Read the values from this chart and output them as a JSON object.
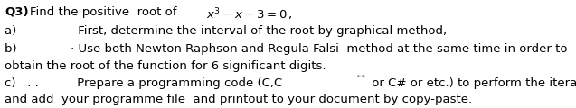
{
  "bg_color": "#ffffff",
  "figsize": [
    6.37,
    1.2
  ],
  "dpi": 100,
  "q3_bold": "Q3)",
  "q3_rest": " Find the positive  root of ",
  "math_formula": "$x^3 - x - 3 = 0\\,,$",
  "line_a": "a)                First, determine the interval of the root by graphical method,",
  "line_b_prefix": "b)              · Use both Newton Raphson and Regula Falsi  method at the same time in order to",
  "line_obtain": "obtain the root of the function for 6 significant digits.",
  "line_c_prefix": "c)   . .          Prepare a programming code (C,C",
  "line_c_super": "**",
  "line_c_suffix": " or C# or etc.) to perform the iterations above",
  "line_last": "and add  your programme file  and printout to your document by copy-paste.",
  "fontsize": 9.5,
  "font": "DejaVu Sans"
}
